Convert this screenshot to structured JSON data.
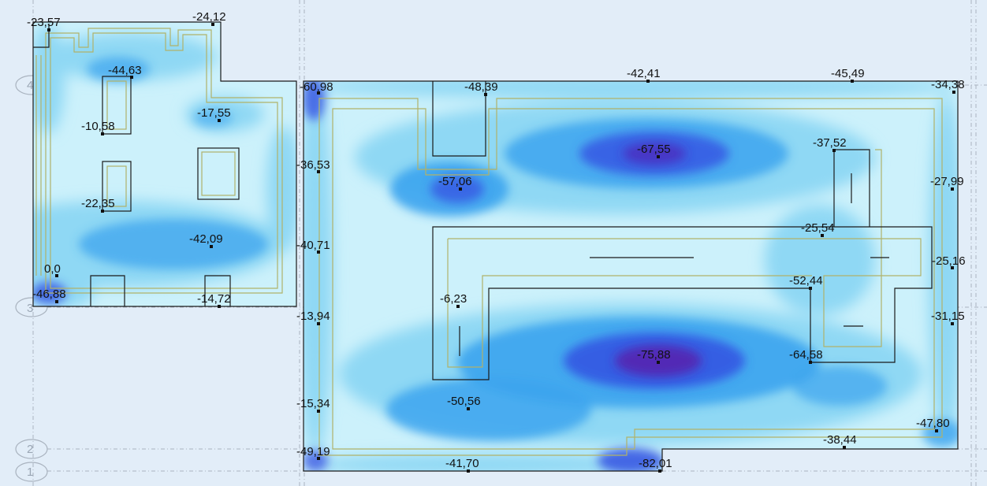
{
  "title": "",
  "axis_labels": [
    "4",
    "3",
    "2",
    "1"
  ],
  "colors": {
    "background": "#e2edf8",
    "slab_base": "#ccf1fb",
    "contour_light": "#8fd8f4",
    "contour_mid": "#3ca4ee",
    "contour_deep": "#3452e2",
    "contour_peak": "#5424b0",
    "outline": "#1a1a1a",
    "beam_line": "#b0b26a",
    "grid_line": "#a9b3bf"
  },
  "point_values": [
    {
      "id": "p1",
      "label": "-23,57",
      "value": -23.57
    },
    {
      "id": "p2",
      "label": "-24,12",
      "value": -24.12
    },
    {
      "id": "p3",
      "label": "-44,63",
      "value": -44.63
    },
    {
      "id": "p4",
      "label": "-10,58",
      "value": -10.58
    },
    {
      "id": "p5",
      "label": "-17,55",
      "value": -17.55
    },
    {
      "id": "p6",
      "label": "-22,35",
      "value": -22.35
    },
    {
      "id": "p7",
      "label": "-42,09",
      "value": -42.09
    },
    {
      "id": "p8",
      "label": "0,0",
      "value": 0.0
    },
    {
      "id": "p9",
      "label": "-46,88",
      "value": -46.88
    },
    {
      "id": "p10",
      "label": "-14,72",
      "value": -14.72
    },
    {
      "id": "p11",
      "label": "-60,98",
      "value": -60.98
    },
    {
      "id": "p12",
      "label": "-48,39",
      "value": -48.39
    },
    {
      "id": "p13",
      "label": "-42,41",
      "value": -42.41
    },
    {
      "id": "p14",
      "label": "-45,49",
      "value": -45.49
    },
    {
      "id": "p15",
      "label": "-34,38",
      "value": -34.38
    },
    {
      "id": "p16",
      "label": "-67,55",
      "value": -67.55
    },
    {
      "id": "p17",
      "label": "-37,52",
      "value": -37.52
    },
    {
      "id": "p18",
      "label": "-36,53",
      "value": -36.53
    },
    {
      "id": "p19",
      "label": "-57,06",
      "value": -57.06
    },
    {
      "id": "p20",
      "label": "-27,99",
      "value": -27.99
    },
    {
      "id": "p21",
      "label": "-25,54",
      "value": -25.54
    },
    {
      "id": "p22",
      "label": "-40,71",
      "value": -40.71
    },
    {
      "id": "p23",
      "label": "-25,16",
      "value": -25.16
    },
    {
      "id": "p24",
      "label": "-52,44",
      "value": -52.44
    },
    {
      "id": "p25",
      "label": "-6,23",
      "value": -6.23
    },
    {
      "id": "p26",
      "label": "-13,94",
      "value": -13.94
    },
    {
      "id": "p27",
      "label": "-31,15",
      "value": -31.15
    },
    {
      "id": "p28",
      "label": "-75,88",
      "value": -75.88
    },
    {
      "id": "p29",
      "label": "-64,58",
      "value": -64.58
    },
    {
      "id": "p30",
      "label": "-50,56",
      "value": -50.56
    },
    {
      "id": "p31",
      "label": "-15,34",
      "value": -15.34
    },
    {
      "id": "p32",
      "label": "-47,80",
      "value": -47.8
    },
    {
      "id": "p33",
      "label": "-38,44",
      "value": -38.44
    },
    {
      "id": "p34",
      "label": "-49,19",
      "value": -49.19
    },
    {
      "id": "p35",
      "label": "-41,70",
      "value": -41.7
    },
    {
      "id": "p36",
      "label": "-82,01",
      "value": -82.01
    }
  ]
}
